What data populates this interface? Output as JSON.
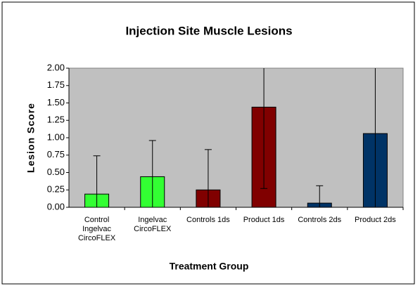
{
  "chart_data": {
    "type": "bar",
    "title": "Injection Site Muscle Lesions",
    "x_label": "Treatment Group",
    "y_label": "Lesion Score",
    "categories": [
      "Control Ingelvac CircoFLEX",
      "Ingelvac CircoFLEX",
      "Controls 1ds",
      "Product 1ds",
      "Controls 2ds",
      "Product 2ds"
    ],
    "values": [
      0.19,
      0.44,
      0.25,
      1.44,
      0.06,
      1.06
    ],
    "errors": [
      0.55,
      0.52,
      0.58,
      1.17,
      0.25,
      1.06
    ],
    "colors": [
      "#33ff33",
      "#33ff33",
      "#800000",
      "#800000",
      "#003366",
      "#003366"
    ],
    "ylim": [
      0,
      2
    ],
    "yticks": [
      {
        "value": 0,
        "label": "0.00"
      },
      {
        "value": 0.25,
        "label": "0.25"
      },
      {
        "value": 0.5,
        "label": "0.50"
      },
      {
        "value": 0.75,
        "label": "0.75"
      },
      {
        "value": 1,
        "label": "1.00"
      },
      {
        "value": 1.25,
        "label": "1.25"
      },
      {
        "value": 1.5,
        "label": "1.50"
      },
      {
        "value": 1.75,
        "label": "1.75"
      },
      {
        "value": 2,
        "label": "2.00"
      }
    ],
    "plot_background": "#c0c0c0",
    "grid": false
  }
}
